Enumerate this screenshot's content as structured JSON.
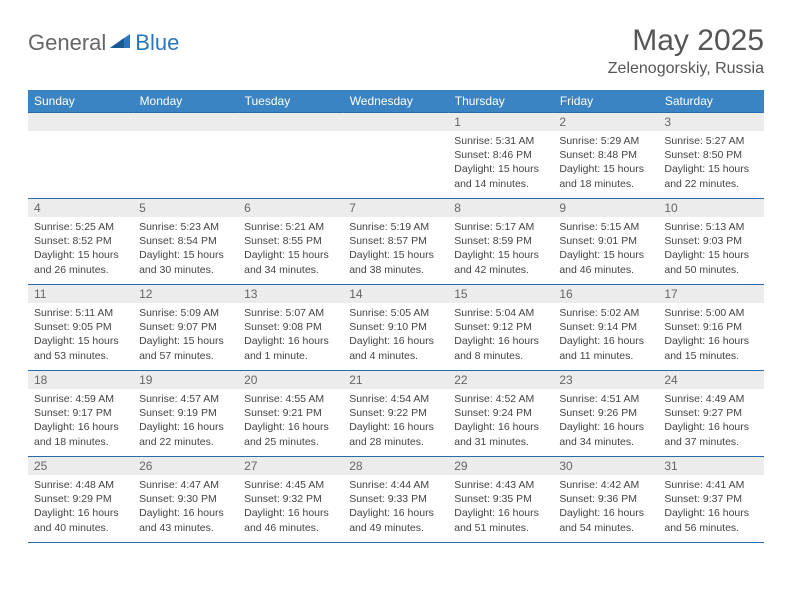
{
  "brand": {
    "part1": "General",
    "part2": "Blue"
  },
  "title": "May 2025",
  "location": "Zelenogorskiy, Russia",
  "colors": {
    "header_bg": "#3b84c4",
    "border": "#2b6aa3",
    "daynum_bg": "#ececec",
    "text": "#444444",
    "brand_gray": "#666666",
    "brand_blue": "#2b77bd"
  },
  "day_headers": [
    "Sunday",
    "Monday",
    "Tuesday",
    "Wednesday",
    "Thursday",
    "Friday",
    "Saturday"
  ],
  "weeks": [
    [
      {
        "n": "",
        "lines": []
      },
      {
        "n": "",
        "lines": []
      },
      {
        "n": "",
        "lines": []
      },
      {
        "n": "",
        "lines": []
      },
      {
        "n": "1",
        "lines": [
          "Sunrise: 5:31 AM",
          "Sunset: 8:46 PM",
          "Daylight: 15 hours and 14 minutes."
        ]
      },
      {
        "n": "2",
        "lines": [
          "Sunrise: 5:29 AM",
          "Sunset: 8:48 PM",
          "Daylight: 15 hours and 18 minutes."
        ]
      },
      {
        "n": "3",
        "lines": [
          "Sunrise: 5:27 AM",
          "Sunset: 8:50 PM",
          "Daylight: 15 hours and 22 minutes."
        ]
      }
    ],
    [
      {
        "n": "4",
        "lines": [
          "Sunrise: 5:25 AM",
          "Sunset: 8:52 PM",
          "Daylight: 15 hours and 26 minutes."
        ]
      },
      {
        "n": "5",
        "lines": [
          "Sunrise: 5:23 AM",
          "Sunset: 8:54 PM",
          "Daylight: 15 hours and 30 minutes."
        ]
      },
      {
        "n": "6",
        "lines": [
          "Sunrise: 5:21 AM",
          "Sunset: 8:55 PM",
          "Daylight: 15 hours and 34 minutes."
        ]
      },
      {
        "n": "7",
        "lines": [
          "Sunrise: 5:19 AM",
          "Sunset: 8:57 PM",
          "Daylight: 15 hours and 38 minutes."
        ]
      },
      {
        "n": "8",
        "lines": [
          "Sunrise: 5:17 AM",
          "Sunset: 8:59 PM",
          "Daylight: 15 hours and 42 minutes."
        ]
      },
      {
        "n": "9",
        "lines": [
          "Sunrise: 5:15 AM",
          "Sunset: 9:01 PM",
          "Daylight: 15 hours and 46 minutes."
        ]
      },
      {
        "n": "10",
        "lines": [
          "Sunrise: 5:13 AM",
          "Sunset: 9:03 PM",
          "Daylight: 15 hours and 50 minutes."
        ]
      }
    ],
    [
      {
        "n": "11",
        "lines": [
          "Sunrise: 5:11 AM",
          "Sunset: 9:05 PM",
          "Daylight: 15 hours and 53 minutes."
        ]
      },
      {
        "n": "12",
        "lines": [
          "Sunrise: 5:09 AM",
          "Sunset: 9:07 PM",
          "Daylight: 15 hours and 57 minutes."
        ]
      },
      {
        "n": "13",
        "lines": [
          "Sunrise: 5:07 AM",
          "Sunset: 9:08 PM",
          "Daylight: 16 hours and 1 minute."
        ]
      },
      {
        "n": "14",
        "lines": [
          "Sunrise: 5:05 AM",
          "Sunset: 9:10 PM",
          "Daylight: 16 hours and 4 minutes."
        ]
      },
      {
        "n": "15",
        "lines": [
          "Sunrise: 5:04 AM",
          "Sunset: 9:12 PM",
          "Daylight: 16 hours and 8 minutes."
        ]
      },
      {
        "n": "16",
        "lines": [
          "Sunrise: 5:02 AM",
          "Sunset: 9:14 PM",
          "Daylight: 16 hours and 11 minutes."
        ]
      },
      {
        "n": "17",
        "lines": [
          "Sunrise: 5:00 AM",
          "Sunset: 9:16 PM",
          "Daylight: 16 hours and 15 minutes."
        ]
      }
    ],
    [
      {
        "n": "18",
        "lines": [
          "Sunrise: 4:59 AM",
          "Sunset: 9:17 PM",
          "Daylight: 16 hours and 18 minutes."
        ]
      },
      {
        "n": "19",
        "lines": [
          "Sunrise: 4:57 AM",
          "Sunset: 9:19 PM",
          "Daylight: 16 hours and 22 minutes."
        ]
      },
      {
        "n": "20",
        "lines": [
          "Sunrise: 4:55 AM",
          "Sunset: 9:21 PM",
          "Daylight: 16 hours and 25 minutes."
        ]
      },
      {
        "n": "21",
        "lines": [
          "Sunrise: 4:54 AM",
          "Sunset: 9:22 PM",
          "Daylight: 16 hours and 28 minutes."
        ]
      },
      {
        "n": "22",
        "lines": [
          "Sunrise: 4:52 AM",
          "Sunset: 9:24 PM",
          "Daylight: 16 hours and 31 minutes."
        ]
      },
      {
        "n": "23",
        "lines": [
          "Sunrise: 4:51 AM",
          "Sunset: 9:26 PM",
          "Daylight: 16 hours and 34 minutes."
        ]
      },
      {
        "n": "24",
        "lines": [
          "Sunrise: 4:49 AM",
          "Sunset: 9:27 PM",
          "Daylight: 16 hours and 37 minutes."
        ]
      }
    ],
    [
      {
        "n": "25",
        "lines": [
          "Sunrise: 4:48 AM",
          "Sunset: 9:29 PM",
          "Daylight: 16 hours and 40 minutes."
        ]
      },
      {
        "n": "26",
        "lines": [
          "Sunrise: 4:47 AM",
          "Sunset: 9:30 PM",
          "Daylight: 16 hours and 43 minutes."
        ]
      },
      {
        "n": "27",
        "lines": [
          "Sunrise: 4:45 AM",
          "Sunset: 9:32 PM",
          "Daylight: 16 hours and 46 minutes."
        ]
      },
      {
        "n": "28",
        "lines": [
          "Sunrise: 4:44 AM",
          "Sunset: 9:33 PM",
          "Daylight: 16 hours and 49 minutes."
        ]
      },
      {
        "n": "29",
        "lines": [
          "Sunrise: 4:43 AM",
          "Sunset: 9:35 PM",
          "Daylight: 16 hours and 51 minutes."
        ]
      },
      {
        "n": "30",
        "lines": [
          "Sunrise: 4:42 AM",
          "Sunset: 9:36 PM",
          "Daylight: 16 hours and 54 minutes."
        ]
      },
      {
        "n": "31",
        "lines": [
          "Sunrise: 4:41 AM",
          "Sunset: 9:37 PM",
          "Daylight: 16 hours and 56 minutes."
        ]
      }
    ]
  ]
}
